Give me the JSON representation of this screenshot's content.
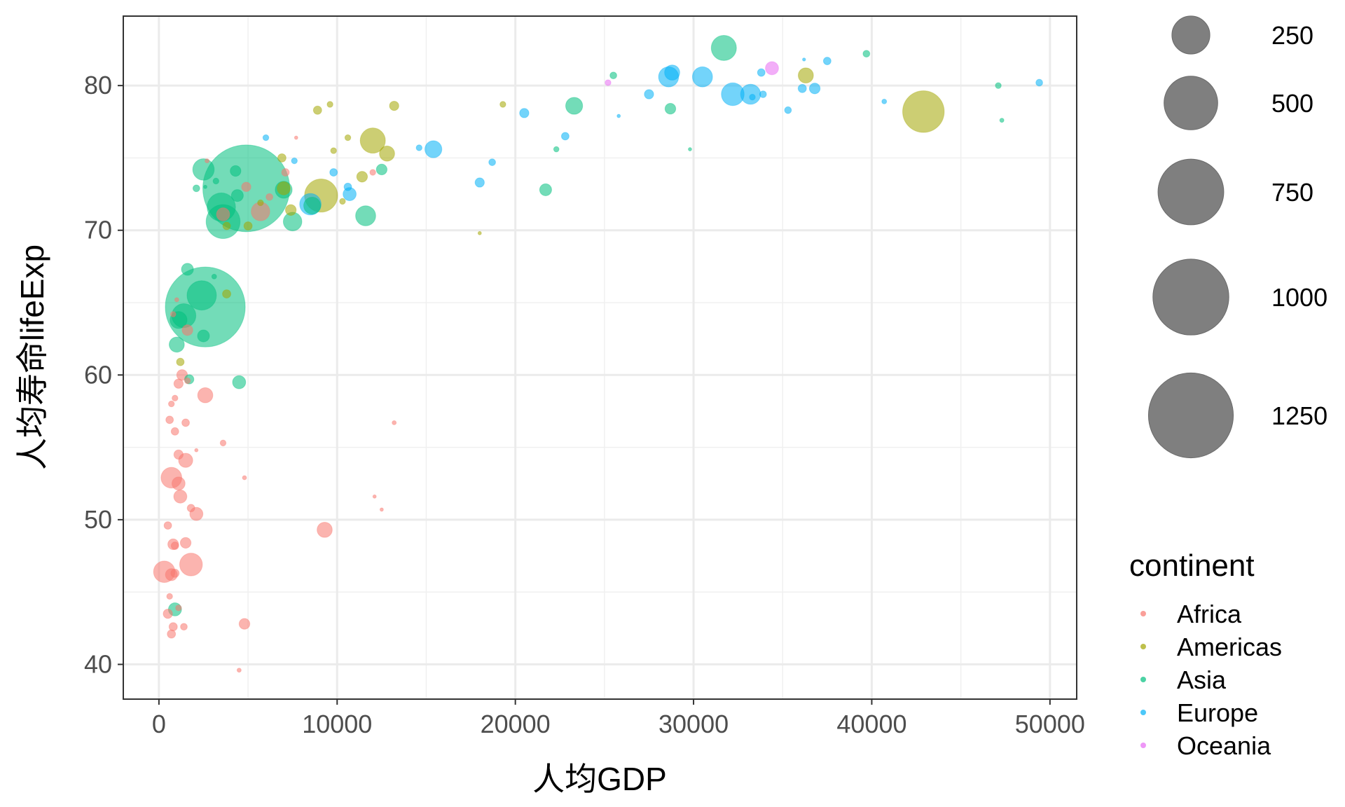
{
  "chart_data": {
    "type": "scatter",
    "title": "",
    "xlabel": "人均GDP",
    "ylabel": "人均寿命lifeExp",
    "xlim": [
      -2000,
      51500
    ],
    "ylim": [
      37.6,
      84.8
    ],
    "x_ticks": [
      0,
      10000,
      20000,
      30000,
      40000,
      50000
    ],
    "x_tick_labels": [
      "0",
      "10000",
      "20000",
      "30000",
      "40000",
      "50000"
    ],
    "y_ticks": [
      40,
      50,
      60,
      70,
      80
    ],
    "y_tick_labels": [
      "40",
      "50",
      "60",
      "70",
      "80"
    ],
    "grid": true,
    "point_alpha": 0.55,
    "colors": {
      "Africa": "#F8766D",
      "Americas": "#A3A500",
      "Asia": "#00BF7D",
      "Europe": "#00B0F6",
      "Oceania": "#E76BF3"
    },
    "size_legend": {
      "title": "",
      "unit_note": "",
      "entries": [
        {
          "label": "250",
          "value": 250
        },
        {
          "label": "500",
          "value": 500
        },
        {
          "label": "750",
          "value": 750
        },
        {
          "label": "1000",
          "value": 1000
        },
        {
          "label": "1250",
          "value": 1250
        }
      ]
    },
    "color_legend": {
      "title": "continent",
      "entries": [
        "Africa",
        "Americas",
        "Asia",
        "Europe",
        "Oceania"
      ]
    },
    "series": [
      {
        "name": "Africa",
        "points": [
          [
            700,
            42.1,
            12
          ],
          [
            800,
            42.6,
            12
          ],
          [
            1400,
            42.6,
            8
          ],
          [
            4800,
            42.8,
            20
          ],
          [
            4500,
            39.6,
            3
          ],
          [
            500,
            43.5,
            15
          ],
          [
            1100,
            43.9,
            6
          ],
          [
            600,
            44.7,
            6
          ],
          [
            300,
            46.4,
            80
          ],
          [
            1800,
            46.9,
            90
          ],
          [
            700,
            46.2,
            25
          ],
          [
            900,
            46.3,
            12
          ],
          [
            500,
            49.6,
            10
          ],
          [
            800,
            48.3,
            20
          ],
          [
            1500,
            48.4,
            20
          ],
          [
            9300,
            49.3,
            40
          ],
          [
            700,
            52.9,
            75
          ],
          [
            1100,
            52.5,
            30
          ],
          [
            1200,
            51.6,
            30
          ],
          [
            1800,
            50.8,
            10
          ],
          [
            2100,
            50.4,
            30
          ],
          [
            900,
            48.2,
            10
          ],
          [
            1500,
            54.1,
            35
          ],
          [
            1100,
            54.5,
            15
          ],
          [
            3600,
            55.3,
            6
          ],
          [
            2100,
            54.8,
            2
          ],
          [
            600,
            56.9,
            10
          ],
          [
            900,
            56.1,
            10
          ],
          [
            1500,
            56.7,
            10
          ],
          [
            700,
            58.0,
            6
          ],
          [
            900,
            58.4,
            6
          ],
          [
            2600,
            58.6,
            40
          ],
          [
            1100,
            59.4,
            15
          ],
          [
            1300,
            60.0,
            20
          ],
          [
            1600,
            59.6,
            6
          ],
          [
            4800,
            52.9,
            3
          ],
          [
            12100,
            51.6,
            2
          ],
          [
            12500,
            50.7,
            2
          ],
          [
            13200,
            56.7,
            3
          ],
          [
            1600,
            63.1,
            20
          ],
          [
            800,
            64.2,
            5
          ],
          [
            1000,
            65.2,
            3
          ],
          [
            3600,
            71.1,
            30
          ],
          [
            5700,
            71.3,
            60
          ],
          [
            7700,
            76.4,
            2
          ],
          [
            12000,
            74.0,
            6
          ],
          [
            6200,
            72.3,
            8
          ],
          [
            7100,
            74.0,
            10
          ],
          [
            2700,
            74.8,
            3
          ],
          [
            4900,
            73.0,
            15
          ]
        ]
      },
      {
        "name": "Americas",
        "points": [
          [
            1200,
            60.9,
            10
          ],
          [
            3800,
            65.6,
            12
          ],
          [
            5000,
            70.3,
            12
          ],
          [
            7000,
            72.9,
            30
          ],
          [
            9100,
            72.4,
            190
          ],
          [
            7400,
            71.4,
            20
          ],
          [
            6900,
            75.0,
            12
          ],
          [
            8900,
            78.3,
            12
          ],
          [
            9600,
            78.7,
            6
          ],
          [
            9800,
            75.5,
            6
          ],
          [
            10600,
            76.4,
            6
          ],
          [
            11400,
            73.7,
            20
          ],
          [
            12000,
            76.2,
            110
          ],
          [
            12800,
            75.3,
            40
          ],
          [
            13200,
            78.6,
            15
          ],
          [
            18000,
            69.8,
            2
          ],
          [
            19300,
            78.7,
            6
          ],
          [
            36300,
            80.7,
            40
          ],
          [
            42900,
            78.2,
            300
          ],
          [
            5700,
            71.9,
            6
          ],
          [
            10300,
            72.0,
            6
          ],
          [
            3800,
            70.3,
            10
          ]
        ]
      },
      {
        "name": "Asia",
        "points": [
          [
            900,
            43.8,
            30
          ],
          [
            1000,
            62.1,
            40
          ],
          [
            1100,
            63.8,
            50
          ],
          [
            1400,
            64.1,
            100
          ],
          [
            2600,
            64.7,
            1110
          ],
          [
            2500,
            62.7,
            25
          ],
          [
            1600,
            67.3,
            25
          ],
          [
            1700,
            59.7,
            15
          ],
          [
            4500,
            59.5,
            30
          ],
          [
            2400,
            65.5,
            150
          ],
          [
            3100,
            66.8,
            4
          ],
          [
            2500,
            74.2,
            80
          ],
          [
            3200,
            73.4,
            6
          ],
          [
            3500,
            71.6,
            140
          ],
          [
            3600,
            70.6,
            200
          ],
          [
            4400,
            72.4,
            25
          ],
          [
            4300,
            74.1,
            20
          ],
          [
            4900,
            72.9,
            1310
          ],
          [
            7500,
            70.6,
            60
          ],
          [
            7000,
            72.8,
            50
          ],
          [
            8600,
            71.7,
            50
          ],
          [
            11600,
            71.0,
            70
          ],
          [
            12500,
            74.2,
            20
          ],
          [
            21700,
            72.8,
            25
          ],
          [
            23300,
            78.6,
            50
          ],
          [
            22300,
            75.6,
            5
          ],
          [
            25500,
            80.7,
            8
          ],
          [
            28700,
            78.4,
            20
          ],
          [
            31700,
            82.6,
            110
          ],
          [
            39700,
            82.2,
            8
          ],
          [
            47100,
            80.0,
            6
          ],
          [
            47300,
            77.6,
            3
          ],
          [
            29800,
            75.6,
            2
          ],
          [
            2600,
            73.0,
            2
          ],
          [
            2100,
            72.9,
            8
          ]
        ]
      },
      {
        "name": "Europe",
        "points": [
          [
            6000,
            76.4,
            6
          ],
          [
            7600,
            74.8,
            6
          ],
          [
            8500,
            71.8,
            80
          ],
          [
            9800,
            74.0,
            10
          ],
          [
            10700,
            72.5,
            30
          ],
          [
            10600,
            73.0,
            10
          ],
          [
            14600,
            75.7,
            6
          ],
          [
            15400,
            75.6,
            50
          ],
          [
            18000,
            73.3,
            15
          ],
          [
            18700,
            74.7,
            8
          ],
          [
            20500,
            78.1,
            15
          ],
          [
            22800,
            76.5,
            10
          ],
          [
            25800,
            77.9,
            2
          ],
          [
            27500,
            79.4,
            15
          ],
          [
            28600,
            80.6,
            70
          ],
          [
            28800,
            80.9,
            40
          ],
          [
            30500,
            80.6,
            70
          ],
          [
            32200,
            79.4,
            90
          ],
          [
            33200,
            79.4,
            70
          ],
          [
            33900,
            79.4,
            8
          ],
          [
            33800,
            80.9,
            10
          ],
          [
            33300,
            79.2,
            6
          ],
          [
            35300,
            78.3,
            8
          ],
          [
            36100,
            79.8,
            12
          ],
          [
            36800,
            79.8,
            20
          ],
          [
            37500,
            81.7,
            10
          ],
          [
            40700,
            78.9,
            4
          ],
          [
            49400,
            80.2,
            8
          ],
          [
            36200,
            81.8,
            1
          ]
        ]
      },
      {
        "name": "Oceania",
        "points": [
          [
            25200,
            80.2,
            6
          ],
          [
            34400,
            81.2,
            30
          ]
        ]
      }
    ]
  }
}
